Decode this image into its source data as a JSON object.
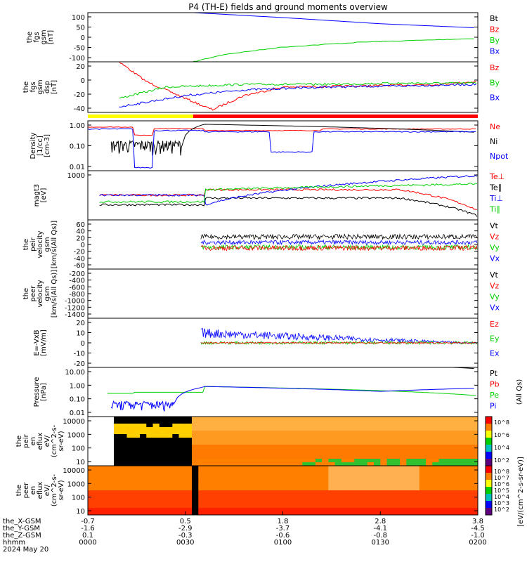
{
  "title": "P4 (TH-E) fields and ground moments overview",
  "colors": {
    "black": "#000000",
    "red": "#ff0000",
    "green": "#00d000",
    "blue": "#0000ff",
    "yellow": "#ffff00"
  },
  "chart_data": {
    "type": "line",
    "time_range": [
      "2024-05-20 00:00",
      "2024-05-20 02:00"
    ],
    "panels": [
      {
        "ylabel": [
          "the",
          "fgs",
          "gsm",
          "[nT]"
        ],
        "yticks": [
          "100",
          "50",
          "0",
          "-50",
          "-100"
        ],
        "ylim": [
          -100,
          100
        ],
        "legend": [
          "Bt",
          "Bz",
          "By",
          "Bx"
        ],
        "legend_colors": [
          "black",
          "red",
          "green",
          "blue"
        ]
      },
      {
        "ylabel": [
          "the",
          "fgs",
          "gsm",
          "dsp",
          "[nT]"
        ],
        "yticks": [
          "20",
          "0",
          "-20",
          "-40"
        ],
        "ylim": [
          -55,
          35
        ],
        "legend": [
          "Bz",
          "By",
          "Bx"
        ],
        "legend_colors": [
          "red",
          "green",
          "blue"
        ]
      },
      {
        "ylabel": [
          "Density",
          "[1/cc]",
          "[cm-3]"
        ],
        "yticks": [
          "1.00",
          "0.10",
          "0.01"
        ],
        "yscale": "log",
        "legend": [
          "Ne",
          "Ni",
          "Npot"
        ],
        "legend_colors": [
          "red",
          "black",
          "blue"
        ]
      },
      {
        "ylabel": [
          "magt3",
          "[eV]"
        ],
        "yticks": [
          "1000"
        ],
        "yscale": "log",
        "legend": [
          "Te⊥",
          "Te∥",
          "Ti⊥",
          "Ti∥"
        ],
        "legend_colors": [
          "red",
          "black",
          "blue",
          "green"
        ]
      },
      {
        "ylabel": [
          "the",
          "peir",
          "velocity",
          "gsm",
          "[km/s(All Qs)]"
        ],
        "yticks": [
          "60",
          "40",
          "20",
          "0",
          "-20",
          "-40",
          "-60"
        ],
        "ylim": [
          -70,
          70
        ],
        "legend": [
          "Vt",
          "Vz",
          "Vy",
          "Vx"
        ],
        "legend_colors": [
          "black",
          "red",
          "green",
          "blue"
        ]
      },
      {
        "ylabel": [
          "the",
          "peer",
          "velocity",
          "gsm",
          "[km/s(All Qs)]"
        ],
        "yticks": [
          "-200",
          "-400",
          "-600",
          "-800",
          "-1000",
          "-1200",
          "-1400"
        ],
        "ylim": [
          -1500,
          -100
        ],
        "legend": [
          "Vt",
          "Vz",
          "Vy",
          "Vx"
        ],
        "legend_colors": [
          "black",
          "red",
          "green",
          "blue"
        ]
      },
      {
        "ylabel": [
          "E=-VxB",
          "[mV/m]"
        ],
        "yticks": [
          "20",
          "10",
          "0",
          "-10",
          "-20"
        ],
        "ylim": [
          -25,
          25
        ],
        "legend": [
          "Ez",
          "Ey",
          "Ex"
        ],
        "legend_colors": [
          "red",
          "green",
          "blue"
        ]
      },
      {
        "ylabel": [
          "Pressure",
          "[nPa]"
        ],
        "yticks": [
          "10.00",
          "1.00",
          "0.10",
          "0.01"
        ],
        "yscale": "log",
        "legend": [
          "Pt",
          "Pb",
          "Pe",
          "Pi"
        ],
        "legend_colors": [
          "black",
          "red",
          "green",
          "blue"
        ],
        "right_label": "(All Qs)"
      },
      {
        "ylabel": [
          "the",
          "peir",
          "en",
          "eflux",
          "eV/",
          "(cm^2-s-",
          "sr-eV)"
        ],
        "yticks": [
          "10000",
          "1000",
          "100",
          "10"
        ],
        "yscale": "log",
        "type": "spectrogram"
      },
      {
        "ylabel": [
          "the",
          "peer",
          "en",
          "eflux",
          "eV/",
          "(cm^2-s-",
          "sr-eV)"
        ],
        "yticks": [
          "10000",
          "1000",
          "100",
          "10"
        ],
        "yscale": "log",
        "type": "spectrogram"
      }
    ],
    "colorbar": {
      "ticks": [
        "10^8",
        "10^6",
        "10^4",
        "10^2"
      ],
      "label": "[eV/(cm^2-s-sr-eV)]"
    },
    "spec_colorbar_ticks": [
      "10^8",
      "10^7",
      "10^6",
      "10^5",
      "10^4",
      "10^3",
      "10^2"
    ],
    "xaxis_rows": [
      {
        "label": "the_X-GSM",
        "values": [
          "-0.7",
          "0.5",
          "1.8",
          "2.8",
          "3.8"
        ]
      },
      {
        "label": "the_Y-GSM",
        "values": [
          "-1.6",
          "-2.9",
          "-3.7",
          "-4.1",
          "-4.5"
        ]
      },
      {
        "label": "the_Z-GSM",
        "values": [
          "0.1",
          "-0.3",
          "-0.6",
          "-0.8",
          "-1.0"
        ]
      },
      {
        "label": "hhmm",
        "values": [
          "0000",
          "0030",
          "0100",
          "0130",
          "0200"
        ]
      },
      {
        "label": "2024 May 20",
        "values": []
      }
    ],
    "series_trends": {
      "p1_Bt": [
        [
          0.27,
          100
        ],
        [
          0.5,
          80
        ],
        [
          0.75,
          55
        ],
        [
          1.0,
          38
        ]
      ],
      "p1_By": [
        [
          0.27,
          -100
        ],
        [
          0.35,
          -70
        ],
        [
          0.5,
          -40
        ],
        [
          0.7,
          -20
        ],
        [
          1.0,
          -5
        ]
      ],
      "p2_Bz": [
        [
          0.08,
          35
        ],
        [
          0.15,
          0
        ],
        [
          0.3,
          -45
        ],
        [
          0.32,
          -50
        ],
        [
          0.4,
          -25
        ],
        [
          0.5,
          -10
        ],
        [
          0.7,
          -8
        ],
        [
          0.9,
          -5
        ],
        [
          1.0,
          0
        ]
      ],
      "p2_By": [
        [
          0.08,
          -30
        ],
        [
          0.2,
          -10
        ],
        [
          0.4,
          -5
        ],
        [
          0.6,
          -5
        ],
        [
          0.8,
          -3
        ],
        [
          1.0,
          -3
        ]
      ],
      "p2_Bx": [
        [
          0.08,
          -45
        ],
        [
          0.25,
          -25
        ],
        [
          0.4,
          -15
        ],
        [
          0.6,
          -10
        ],
        [
          0.8,
          -8
        ],
        [
          1.0,
          -5
        ]
      ]
    }
  }
}
